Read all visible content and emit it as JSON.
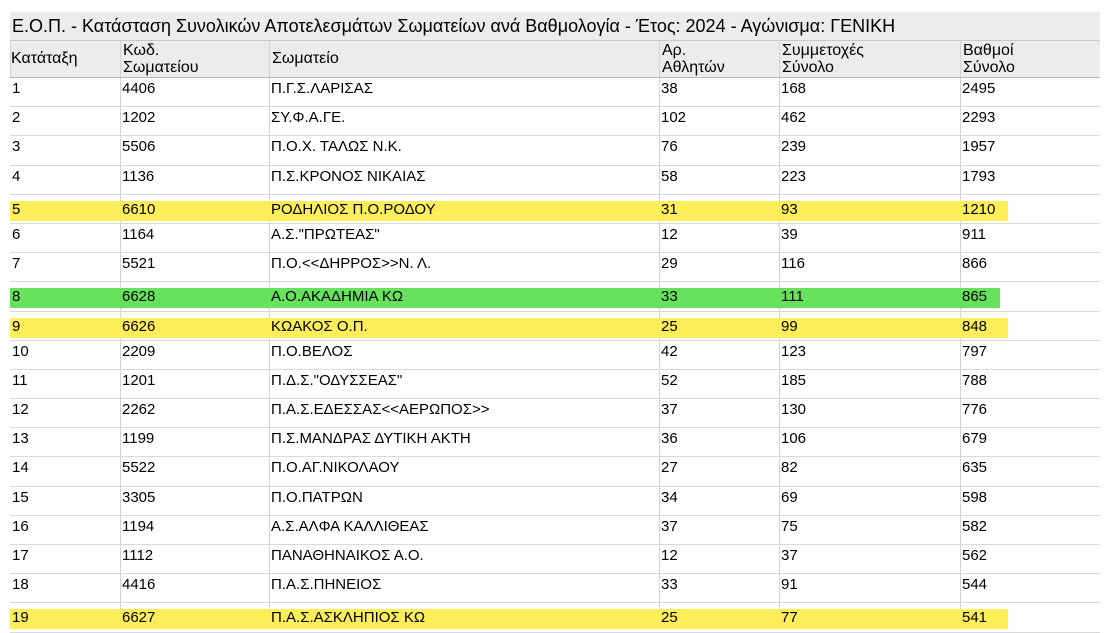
{
  "title": "Ε.Ο.Π.   -   Κατάσταση Συνολικών Αποτελεσμάτων Σωματείων  ανά Βαθμολογία - Έτος: 2024 - Αγώνισμα: ΓΕΝΙΚΗ",
  "columns": [
    {
      "line1": "Κατάταξη",
      "line2": ""
    },
    {
      "line1": "Κωδ.",
      "line2": "Σωματείου"
    },
    {
      "line1": "Σωματείο",
      "line2": ""
    },
    {
      "line1": "Αρ.",
      "line2": "Αθλητών"
    },
    {
      "line1": "Συμμετοχές",
      "line2": "Σύνολο"
    },
    {
      "line1": "Βαθμοί",
      "line2": "Σύνολο"
    }
  ],
  "highlight_colors": {
    "yellow": "#fdee5a",
    "green": "#66e25c"
  },
  "rows": [
    {
      "rank": "1",
      "code": "4406",
      "club": "Π.Γ.Σ.ΛΑΡΙΣΑΣ",
      "athletes": "38",
      "entries": "168",
      "points": "2495",
      "highlight": ""
    },
    {
      "rank": "2",
      "code": "1202",
      "club": "ΣΥ.Φ.Α.ΓΕ.",
      "athletes": "102",
      "entries": "462",
      "points": "2293",
      "highlight": ""
    },
    {
      "rank": "3",
      "code": "5506",
      "club": "Π.Ο.Χ. ΤΑΛΩΣ Ν.Κ.",
      "athletes": "76",
      "entries": "239",
      "points": "1957",
      "highlight": ""
    },
    {
      "rank": "4",
      "code": "1136",
      "club": "Π.Σ.ΚΡΟΝΟΣ ΝΙΚΑΙΑΣ",
      "athletes": "58",
      "entries": "223",
      "points": "1793",
      "highlight": ""
    },
    {
      "rank": "5",
      "code": "6610",
      "club": "ΡΟΔΗΛΙΟΣ Π.Ο.ΡΟΔΟΥ",
      "athletes": "31",
      "entries": "93",
      "points": "1210",
      "highlight": "yellow"
    },
    {
      "rank": "6",
      "code": "1164",
      "club": "Α.Σ.\"ΠΡΩΤΕΑΣ\"",
      "athletes": "12",
      "entries": "39",
      "points": "911",
      "highlight": ""
    },
    {
      "rank": "7",
      "code": "5521",
      "club": "Π.Ο.<<ΔΗΡΡΟΣ>>Ν. Λ.",
      "athletes": "29",
      "entries": "116",
      "points": "866",
      "highlight": ""
    },
    {
      "rank": "8",
      "code": "6628",
      "club": "Α.Ο.ΑΚΑΔΗΜΙΑ ΚΩ",
      "athletes": "33",
      "entries": "111",
      "points": "865",
      "highlight": "green"
    },
    {
      "rank": "9",
      "code": "6626",
      "club": "ΚΩΑΚΟΣ Ο.Π.",
      "athletes": "25",
      "entries": "99",
      "points": "848",
      "highlight": "yellow"
    },
    {
      "rank": "10",
      "code": "2209",
      "club": "Π.Ο.ΒΕΛΟΣ",
      "athletes": "42",
      "entries": "123",
      "points": "797",
      "highlight": ""
    },
    {
      "rank": "11",
      "code": "1201",
      "club": "Π.Δ.Σ.\"ΟΔΥΣΣΕΑΣ\"",
      "athletes": "52",
      "entries": "185",
      "points": "788",
      "highlight": ""
    },
    {
      "rank": "12",
      "code": "2262",
      "club": "Π.Α.Σ.ΕΔΕΣΣΑΣ<<ΑΕΡΩΠΟΣ>>",
      "athletes": "37",
      "entries": "130",
      "points": "776",
      "highlight": ""
    },
    {
      "rank": "13",
      "code": "1199",
      "club": "Π.Σ.ΜΑΝΔΡΑΣ ΔΥΤΙΚΗ ΑΚΤΗ",
      "athletes": "36",
      "entries": "106",
      "points": "679",
      "highlight": ""
    },
    {
      "rank": "14",
      "code": "5522",
      "club": "Π.Ο.ΑΓ.ΝΙΚΟΛΑΟΥ",
      "athletes": "27",
      "entries": "82",
      "points": "635",
      "highlight": ""
    },
    {
      "rank": "15",
      "code": "3305",
      "club": "Π.Ο.ΠΑΤΡΩΝ",
      "athletes": "34",
      "entries": "69",
      "points": "598",
      "highlight": ""
    },
    {
      "rank": "16",
      "code": "1194",
      "club": "Α.Σ.ΑΛΦΑ ΚΑΛΛΙΘΕΑΣ",
      "athletes": "37",
      "entries": "75",
      "points": "582",
      "highlight": ""
    },
    {
      "rank": "17",
      "code": "1112",
      "club": "ΠΑΝΑΘΗΝΑΙΚΟΣ Α.Ο.",
      "athletes": "12",
      "entries": "37",
      "points": "562",
      "highlight": ""
    },
    {
      "rank": "18",
      "code": "4416",
      "club": "Π.Α.Σ.ΠΗΝΕΙΟΣ",
      "athletes": "33",
      "entries": "91",
      "points": "544",
      "highlight": ""
    },
    {
      "rank": "19",
      "code": "6627",
      "club": "Π.Α.Σ.ΑΣΚΛΗΠΙΟΣ ΚΩ",
      "athletes": "25",
      "entries": "77",
      "points": "541",
      "highlight": "yellow"
    }
  ]
}
